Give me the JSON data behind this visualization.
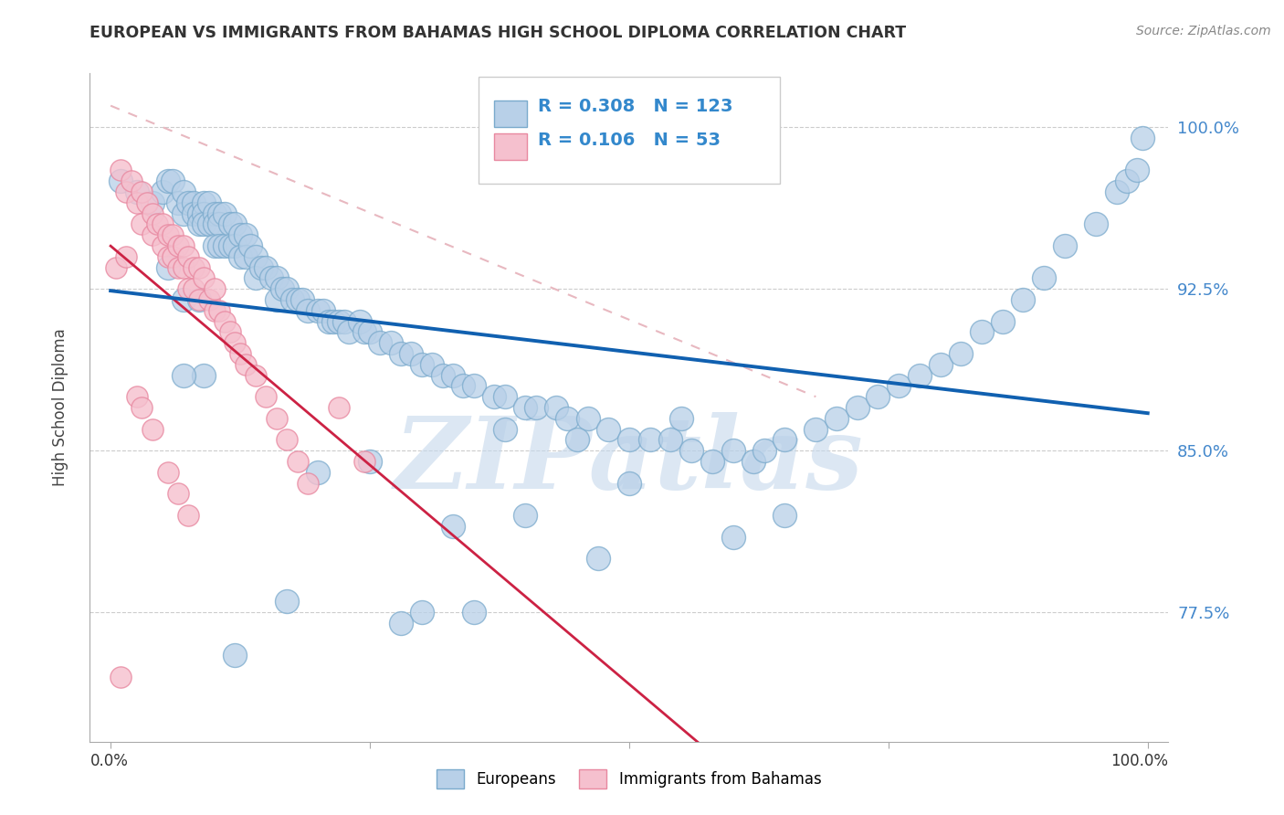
{
  "title": "EUROPEAN VS IMMIGRANTS FROM BAHAMAS HIGH SCHOOL DIPLOMA CORRELATION CHART",
  "source": "Source: ZipAtlas.com",
  "ylabel": "High School Diploma",
  "R_blue": 0.308,
  "N_blue": 123,
  "R_pink": 0.106,
  "N_pink": 53,
  "blue_color": "#b8d0e8",
  "blue_edge": "#7aaacc",
  "pink_color": "#f5c0ce",
  "pink_edge": "#e888a0",
  "blue_line_color": "#1060b0",
  "pink_line_color": "#cc2244",
  "ref_line_color": "#ddaaaa",
  "watermark_color": "#c5d8ec",
  "xlim": [
    -0.02,
    1.02
  ],
  "ylim": [
    0.715,
    1.025
  ],
  "ytick_values": [
    1.0,
    0.925,
    0.85,
    0.775
  ],
  "ytick_labels": [
    "100.0%",
    "92.5%",
    "85.0%",
    "77.5%"
  ],
  "blue_scatter_x": [
    0.01,
    0.025,
    0.04,
    0.05,
    0.055,
    0.06,
    0.065,
    0.07,
    0.07,
    0.075,
    0.08,
    0.08,
    0.085,
    0.085,
    0.09,
    0.09,
    0.09,
    0.095,
    0.095,
    0.1,
    0.1,
    0.1,
    0.105,
    0.105,
    0.105,
    0.11,
    0.11,
    0.115,
    0.115,
    0.12,
    0.12,
    0.125,
    0.125,
    0.13,
    0.13,
    0.135,
    0.14,
    0.14,
    0.145,
    0.15,
    0.155,
    0.16,
    0.16,
    0.165,
    0.17,
    0.175,
    0.18,
    0.185,
    0.19,
    0.2,
    0.205,
    0.21,
    0.215,
    0.22,
    0.225,
    0.23,
    0.24,
    0.245,
    0.25,
    0.26,
    0.27,
    0.28,
    0.29,
    0.3,
    0.31,
    0.32,
    0.33,
    0.34,
    0.35,
    0.37,
    0.38,
    0.4,
    0.41,
    0.43,
    0.44,
    0.46,
    0.48,
    0.5,
    0.52,
    0.54,
    0.56,
    0.58,
    0.6,
    0.62,
    0.63,
    0.65,
    0.68,
    0.7,
    0.72,
    0.74,
    0.76,
    0.78,
    0.8,
    0.82,
    0.84,
    0.86,
    0.88,
    0.9,
    0.92,
    0.95,
    0.97,
    0.98,
    0.99,
    0.995,
    0.6,
    0.65,
    0.5,
    0.45,
    0.55,
    0.38,
    0.35,
    0.3,
    0.28,
    0.33,
    0.4,
    0.47,
    0.25,
    0.2,
    0.17,
    0.12,
    0.09,
    0.07,
    0.055,
    0.07,
    0.085
  ],
  "blue_scatter_y": [
    0.975,
    0.97,
    0.965,
    0.97,
    0.975,
    0.975,
    0.965,
    0.97,
    0.96,
    0.965,
    0.965,
    0.96,
    0.96,
    0.955,
    0.965,
    0.96,
    0.955,
    0.965,
    0.955,
    0.96,
    0.955,
    0.945,
    0.96,
    0.955,
    0.945,
    0.96,
    0.945,
    0.955,
    0.945,
    0.955,
    0.945,
    0.95,
    0.94,
    0.95,
    0.94,
    0.945,
    0.94,
    0.93,
    0.935,
    0.935,
    0.93,
    0.93,
    0.92,
    0.925,
    0.925,
    0.92,
    0.92,
    0.92,
    0.915,
    0.915,
    0.915,
    0.91,
    0.91,
    0.91,
    0.91,
    0.905,
    0.91,
    0.905,
    0.905,
    0.9,
    0.9,
    0.895,
    0.895,
    0.89,
    0.89,
    0.885,
    0.885,
    0.88,
    0.88,
    0.875,
    0.875,
    0.87,
    0.87,
    0.87,
    0.865,
    0.865,
    0.86,
    0.855,
    0.855,
    0.855,
    0.85,
    0.845,
    0.85,
    0.845,
    0.85,
    0.855,
    0.86,
    0.865,
    0.87,
    0.875,
    0.88,
    0.885,
    0.89,
    0.895,
    0.905,
    0.91,
    0.92,
    0.93,
    0.945,
    0.955,
    0.97,
    0.975,
    0.98,
    0.995,
    0.81,
    0.82,
    0.835,
    0.855,
    0.865,
    0.86,
    0.775,
    0.775,
    0.77,
    0.815,
    0.82,
    0.8,
    0.845,
    0.84,
    0.78,
    0.755,
    0.885,
    0.885,
    0.935,
    0.92,
    0.92
  ],
  "pink_scatter_x": [
    0.01,
    0.015,
    0.02,
    0.025,
    0.03,
    0.03,
    0.035,
    0.04,
    0.04,
    0.045,
    0.05,
    0.05,
    0.055,
    0.055,
    0.06,
    0.06,
    0.065,
    0.065,
    0.07,
    0.07,
    0.075,
    0.075,
    0.08,
    0.08,
    0.085,
    0.085,
    0.09,
    0.095,
    0.1,
    0.1,
    0.105,
    0.11,
    0.115,
    0.12,
    0.125,
    0.13,
    0.14,
    0.15,
    0.16,
    0.17,
    0.18,
    0.19,
    0.22,
    0.245,
    0.005,
    0.015,
    0.025,
    0.03,
    0.04,
    0.055,
    0.065,
    0.075,
    0.01
  ],
  "pink_scatter_y": [
    0.98,
    0.97,
    0.975,
    0.965,
    0.97,
    0.955,
    0.965,
    0.96,
    0.95,
    0.955,
    0.955,
    0.945,
    0.95,
    0.94,
    0.95,
    0.94,
    0.945,
    0.935,
    0.945,
    0.935,
    0.94,
    0.925,
    0.935,
    0.925,
    0.935,
    0.92,
    0.93,
    0.92,
    0.925,
    0.915,
    0.915,
    0.91,
    0.905,
    0.9,
    0.895,
    0.89,
    0.885,
    0.875,
    0.865,
    0.855,
    0.845,
    0.835,
    0.87,
    0.845,
    0.935,
    0.94,
    0.875,
    0.87,
    0.86,
    0.84,
    0.83,
    0.82,
    0.745
  ]
}
